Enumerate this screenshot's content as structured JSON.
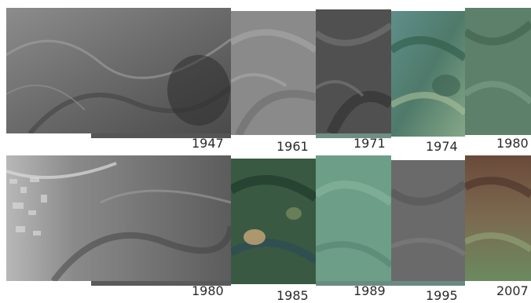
{
  "rows": [
    {
      "years": [
        "1947",
        "1961",
        "1971",
        "1974",
        "1980"
      ],
      "colors": [
        "#6e6e6e",
        "#8a8a8a",
        "#4e4e4e",
        "#5f8d86",
        "#5b7d66"
      ]
    },
    {
      "years": [
        "1980",
        "1985",
        "1989",
        "1995",
        "2007"
      ],
      "colors": [
        "#6a6a6a",
        "#3c5a43",
        "#6a9c86",
        "#6b6b6b",
        "#7b6a52"
      ]
    }
  ]
}
